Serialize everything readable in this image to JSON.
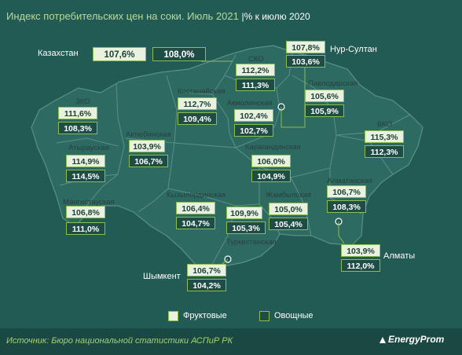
{
  "title": "Индекс потребительских цен на соки. Июль 2021",
  "subtitle": "|% к июлю 2020",
  "legend": {
    "fruit": "Фруктовые",
    "veg": "Овощные"
  },
  "source": "Источник: Бюро национальной статистики АСПиР РК",
  "brand": "EnergyProm",
  "colors": {
    "background": "#215b53",
    "map": "#2c6a61",
    "fruit_box": "#e9f1df",
    "veg_box": "#1e4d46",
    "border": "#8cbd4e"
  },
  "chart_data": {
    "type": "table",
    "columns": [
      "Фруктовые",
      "Овощные"
    ],
    "regions": [
      {
        "name": "Казахстан",
        "fruit": "107,6%",
        "veg": "108,0%"
      },
      {
        "name": "Нур-Султан",
        "fruit": "107,8%",
        "veg": "103,6%"
      },
      {
        "name": "СКО",
        "fruit": "112,2%",
        "veg": "111,3%"
      },
      {
        "name": "Павлодарская",
        "fruit": "105,6%",
        "veg": "105,9%"
      },
      {
        "name": "Костанайская",
        "fruit": "112,7%",
        "veg": "109,4%"
      },
      {
        "name": "Акмолинская",
        "fruit": "102,4%",
        "veg": "102,7%"
      },
      {
        "name": "ЗКО",
        "fruit": "111,6%",
        "veg": "108,3%"
      },
      {
        "name": "Актюбинская",
        "fruit": "103,9%",
        "veg": "106,7%"
      },
      {
        "name": "ВКО",
        "fruit": "115,3%",
        "veg": "112,3%"
      },
      {
        "name": "Атырауская",
        "fruit": "114,9%",
        "veg": "114,5%"
      },
      {
        "name": "Карагандинская",
        "fruit": "106,0%",
        "veg": "104,9%"
      },
      {
        "name": "Алматинская",
        "fruit": "106,7%",
        "veg": "108,3%"
      },
      {
        "name": "Кызылординская",
        "fruit": "106,4%",
        "veg": "104,7%"
      },
      {
        "name": "Жамбылская",
        "fruit": "105,0%",
        "veg": "105,4%"
      },
      {
        "name": "Мангистауская",
        "fruit": "106,8%",
        "veg": "111,0%"
      },
      {
        "name": "Туркестанская",
        "fruit": "109,9%",
        "veg": "105,3%"
      },
      {
        "name": "Алматы",
        "fruit": "103,9%",
        "veg": "112,0%"
      },
      {
        "name": "Шымкент",
        "fruit": "106,7%",
        "veg": "104,2%"
      }
    ]
  }
}
